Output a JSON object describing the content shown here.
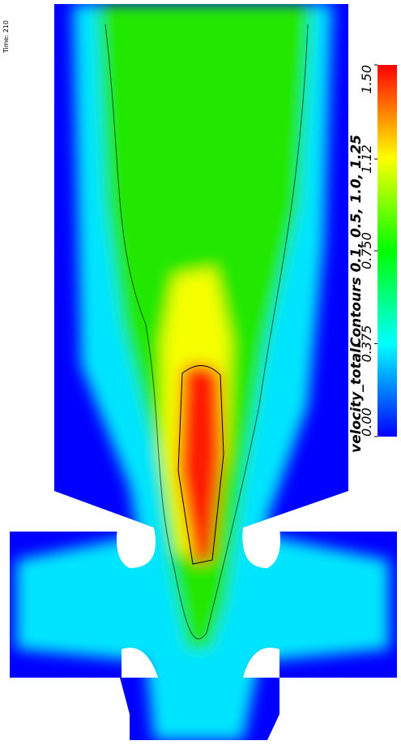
{
  "chart_data": {
    "type": "contour",
    "time_label": "Time: 210",
    "title": "velocity_total.",
    "subtitle": "Contours 0.1, 0.5, 1.0, 1.25",
    "colormap": [
      "#0000ff",
      "#00ffff",
      "#00ff00",
      "#ffff00",
      "#ff0000"
    ],
    "clim": [
      0,
      1.5
    ],
    "cticks": [
      {
        "value": 0,
        "label": "0.00"
      },
      0.375,
      {
        "value": 0.75,
        "label": "0.750"
      },
      1.12,
      {
        "value": 1.5,
        "label": "1.50"
      }
    ]
  }
}
